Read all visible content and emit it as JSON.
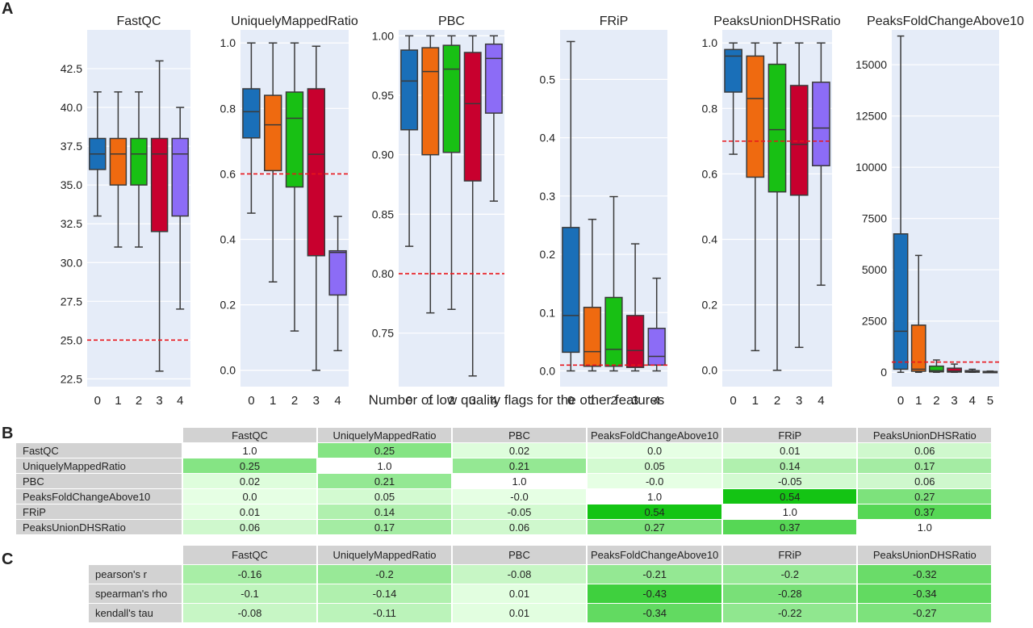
{
  "panel_labels": {
    "a": "A",
    "b": "B",
    "c": "C"
  },
  "x_axis_title": "Number of low quality flags for the other features",
  "colors": {
    "plot_bg": "#e5ecf8",
    "threshold": "#e8151b",
    "flag0": "#1a6fb8",
    "flag1": "#ef6a10",
    "flag2": "#18c014",
    "flag3": "#c8002e",
    "flag4": "#8c6cf6",
    "flag5": "#6a6a6a",
    "header_gray": "#d2d2d2"
  },
  "chart_data": [
    {
      "type": "box",
      "title": "FastQC",
      "categories": [
        "0",
        "1",
        "2",
        "3",
        "4"
      ],
      "ylim": [
        22,
        45
      ],
      "yticks": [
        "22.5",
        "25.0",
        "27.5",
        "30.0",
        "32.5",
        "35.0",
        "37.5",
        "40.0",
        "42.5"
      ],
      "threshold": 25,
      "boxes": [
        {
          "whislo": 33,
          "q1": 36,
          "med": 37,
          "q3": 38,
          "whishi": 41
        },
        {
          "whislo": 31,
          "q1": 35,
          "med": 37,
          "q3": 38,
          "whishi": 41
        },
        {
          "whislo": 31,
          "q1": 35,
          "med": 37,
          "q3": 38,
          "whishi": 41
        },
        {
          "whislo": 23,
          "q1": 32,
          "med": 37,
          "q3": 38,
          "whishi": 43
        },
        {
          "whislo": 27,
          "q1": 33,
          "med": 37,
          "q3": 38,
          "whishi": 40
        }
      ]
    },
    {
      "type": "box",
      "title": "UniquelyMappedRatio",
      "categories": [
        "0",
        "1",
        "2",
        "3",
        "4"
      ],
      "ylim": [
        -0.05,
        1.04
      ],
      "yticks": [
        "0.0",
        "0.2",
        "0.4",
        "0.6",
        "0.8",
        "1.0"
      ],
      "threshold": 0.6,
      "boxes": [
        {
          "whislo": 0.48,
          "q1": 0.71,
          "med": 0.79,
          "q3": 0.86,
          "whishi": 1.0
        },
        {
          "whislo": 0.27,
          "q1": 0.61,
          "med": 0.75,
          "q3": 0.84,
          "whishi": 1.0
        },
        {
          "whislo": 0.12,
          "q1": 0.56,
          "med": 0.77,
          "q3": 0.85,
          "whishi": 1.0
        },
        {
          "whislo": 0.0,
          "q1": 0.35,
          "med": 0.66,
          "q3": 0.86,
          "whishi": 0.99
        },
        {
          "whislo": 0.06,
          "q1": 0.23,
          "med": 0.36,
          "q3": 0.365,
          "whishi": 0.47
        }
      ]
    },
    {
      "type": "box",
      "title": "PBC",
      "categories": [
        "0",
        "1",
        "2",
        "3",
        "4"
      ],
      "ylim": [
        0.705,
        1.005
      ],
      "yticks": [
        "0.75",
        "0.80",
        "0.85",
        "0.90",
        "0.95",
        "1.00"
      ],
      "threshold": 0.8,
      "boxes": [
        {
          "whislo": 0.823,
          "q1": 0.921,
          "med": 0.962,
          "q3": 0.988,
          "whishi": 1.0
        },
        {
          "whislo": 0.767,
          "q1": 0.9,
          "med": 0.97,
          "q3": 0.99,
          "whishi": 1.0
        },
        {
          "whislo": 0.77,
          "q1": 0.902,
          "med": 0.972,
          "q3": 0.992,
          "whishi": 1.0
        },
        {
          "whislo": 0.714,
          "q1": 0.878,
          "med": 0.943,
          "q3": 0.986,
          "whishi": 1.0
        },
        {
          "whislo": 0.861,
          "q1": 0.935,
          "med": 0.981,
          "q3": 0.993,
          "whishi": 1.0
        }
      ]
    },
    {
      "type": "box",
      "title": "FRiP",
      "categories": [
        "0",
        "1",
        "2",
        "3",
        "4"
      ],
      "ylim": [
        -0.027,
        0.585
      ],
      "yticks": [
        "0.0",
        "0.1",
        "0.2",
        "0.3",
        "0.4",
        "0.5"
      ],
      "threshold": 0.01,
      "boxes": [
        {
          "whislo": 0.0,
          "q1": 0.032,
          "med": 0.095,
          "q3": 0.246,
          "whishi": 0.565
        },
        {
          "whislo": 0.0,
          "q1": 0.008,
          "med": 0.033,
          "q3": 0.109,
          "whishi": 0.26
        },
        {
          "whislo": 0.0,
          "q1": 0.008,
          "med": 0.037,
          "q3": 0.126,
          "whishi": 0.299
        },
        {
          "whislo": 0.0,
          "q1": 0.006,
          "med": 0.035,
          "q3": 0.095,
          "whishi": 0.218
        },
        {
          "whislo": 0.0,
          "q1": 0.01,
          "med": 0.025,
          "q3": 0.073,
          "whishi": 0.159
        }
      ]
    },
    {
      "type": "box",
      "title": "PeaksUnionDHSRatio",
      "categories": [
        "0",
        "1",
        "2",
        "3",
        "4"
      ],
      "ylim": [
        -0.05,
        1.04
      ],
      "yticks": [
        "0.0",
        "0.2",
        "0.4",
        "0.6",
        "0.8",
        "1.0"
      ],
      "threshold": 0.7,
      "boxes": [
        {
          "whislo": 0.66,
          "q1": 0.85,
          "med": 0.96,
          "q3": 0.98,
          "whishi": 1.0
        },
        {
          "whislo": 0.06,
          "q1": 0.59,
          "med": 0.83,
          "q3": 0.96,
          "whishi": 1.0
        },
        {
          "whislo": 0.0,
          "q1": 0.545,
          "med": 0.735,
          "q3": 0.935,
          "whishi": 1.0
        },
        {
          "whislo": 0.07,
          "q1": 0.535,
          "med": 0.69,
          "q3": 0.87,
          "whishi": 1.0
        },
        {
          "whislo": 0.26,
          "q1": 0.625,
          "med": 0.74,
          "q3": 0.88,
          "whishi": 1.0
        }
      ]
    },
    {
      "type": "box",
      "title": "PeaksFoldChangeAbove10",
      "categories": [
        "0",
        "1",
        "2",
        "3",
        "4",
        "5"
      ],
      "ylim": [
        -700,
        16700
      ],
      "yticks": [
        "0",
        "2500",
        "5000",
        "7500",
        "10000",
        "12500",
        "15000"
      ],
      "threshold": 500,
      "boxes": [
        {
          "whislo": 0,
          "q1": 150,
          "med": 2000,
          "q3": 6750,
          "whishi": 16400
        },
        {
          "whislo": 0,
          "q1": 50,
          "med": 150,
          "q3": 2300,
          "whishi": 5700
        },
        {
          "whislo": 0,
          "q1": 20,
          "med": 80,
          "q3": 300,
          "whishi": 600
        },
        {
          "whislo": 0,
          "q1": 10,
          "med": 60,
          "q3": 200,
          "whishi": 400
        },
        {
          "whislo": 0,
          "q1": 5,
          "med": 30,
          "q3": 80,
          "whishi": 150
        },
        {
          "whislo": 0,
          "q1": 5,
          "med": 20,
          "q3": 40,
          "whishi": 60
        }
      ]
    }
  ],
  "table_b": {
    "columns": [
      "FastQC",
      "UniquelyMappedRatio",
      "PBC",
      "PeaksFoldChangeAbove10",
      "FRiP",
      "PeaksUnionDHSRatio"
    ],
    "rows": [
      {
        "label": "FastQC",
        "cells": [
          {
            "text": "1.0",
            "v": null
          },
          {
            "text": "0.25",
            "v": 0.25
          },
          {
            "text": "0.02",
            "v": 0.02
          },
          {
            "text": "0.0",
            "v": 0.0
          },
          {
            "text": "0.01",
            "v": 0.01
          },
          {
            "text": "0.06",
            "v": 0.06
          }
        ]
      },
      {
        "label": "UniquelyMappedRatio",
        "cells": [
          {
            "text": "0.25",
            "v": 0.25
          },
          {
            "text": "1.0",
            "v": null
          },
          {
            "text": "0.21",
            "v": 0.21
          },
          {
            "text": "0.05",
            "v": 0.05
          },
          {
            "text": "0.14",
            "v": 0.14
          },
          {
            "text": "0.17",
            "v": 0.17
          }
        ]
      },
      {
        "label": "PBC",
        "cells": [
          {
            "text": "0.02",
            "v": 0.02
          },
          {
            "text": "0.21",
            "v": 0.21
          },
          {
            "text": "1.0",
            "v": null
          },
          {
            "text": "-0.0",
            "v": 0.0
          },
          {
            "text": "-0.05",
            "v": 0.05
          },
          {
            "text": "0.06",
            "v": 0.06
          }
        ]
      },
      {
        "label": "PeaksFoldChangeAbove10",
        "cells": [
          {
            "text": "0.0",
            "v": 0.0
          },
          {
            "text": "0.05",
            "v": 0.05
          },
          {
            "text": "-0.0",
            "v": 0.0
          },
          {
            "text": "1.0",
            "v": null
          },
          {
            "text": "0.54",
            "v": 0.54
          },
          {
            "text": "0.27",
            "v": 0.27
          }
        ]
      },
      {
        "label": "FRiP",
        "cells": [
          {
            "text": "0.01",
            "v": 0.01
          },
          {
            "text": "0.14",
            "v": 0.14
          },
          {
            "text": "-0.05",
            "v": 0.05
          },
          {
            "text": "0.54",
            "v": 0.54
          },
          {
            "text": "1.0",
            "v": null
          },
          {
            "text": "0.37",
            "v": 0.37
          }
        ]
      },
      {
        "label": "PeaksUnionDHSRatio",
        "cells": [
          {
            "text": "0.06",
            "v": 0.06
          },
          {
            "text": "0.17",
            "v": 0.17
          },
          {
            "text": "0.06",
            "v": 0.06
          },
          {
            "text": "0.27",
            "v": 0.27
          },
          {
            "text": "0.37",
            "v": 0.37
          },
          {
            "text": "1.0",
            "v": null
          }
        ]
      }
    ]
  },
  "table_c": {
    "columns": [
      "FastQC",
      "UniquelyMappedRatio",
      "PBC",
      "PeaksFoldChangeAbove10",
      "FRiP",
      "PeaksUnionDHSRatio"
    ],
    "rows": [
      {
        "label": "pearson's r",
        "cells": [
          {
            "text": "-0.16",
            "v": 0.16
          },
          {
            "text": "-0.2",
            "v": 0.2
          },
          {
            "text": "-0.08",
            "v": 0.08
          },
          {
            "text": "-0.21",
            "v": 0.21
          },
          {
            "text": "-0.2",
            "v": 0.2
          },
          {
            "text": "-0.32",
            "v": 0.32
          }
        ]
      },
      {
        "label": "spearman's rho",
        "cells": [
          {
            "text": "-0.1",
            "v": 0.1
          },
          {
            "text": "-0.14",
            "v": 0.14
          },
          {
            "text": "0.01",
            "v": 0.01
          },
          {
            "text": "-0.43",
            "v": 0.43
          },
          {
            "text": "-0.28",
            "v": 0.28
          },
          {
            "text": "-0.34",
            "v": 0.34
          }
        ]
      },
      {
        "label": "kendall's tau",
        "cells": [
          {
            "text": "-0.08",
            "v": 0.08
          },
          {
            "text": "-0.11",
            "v": 0.11
          },
          {
            "text": "0.01",
            "v": 0.01
          },
          {
            "text": "-0.34",
            "v": 0.34
          },
          {
            "text": "-0.22",
            "v": 0.22
          },
          {
            "text": "-0.27",
            "v": 0.27
          }
        ]
      }
    ]
  }
}
